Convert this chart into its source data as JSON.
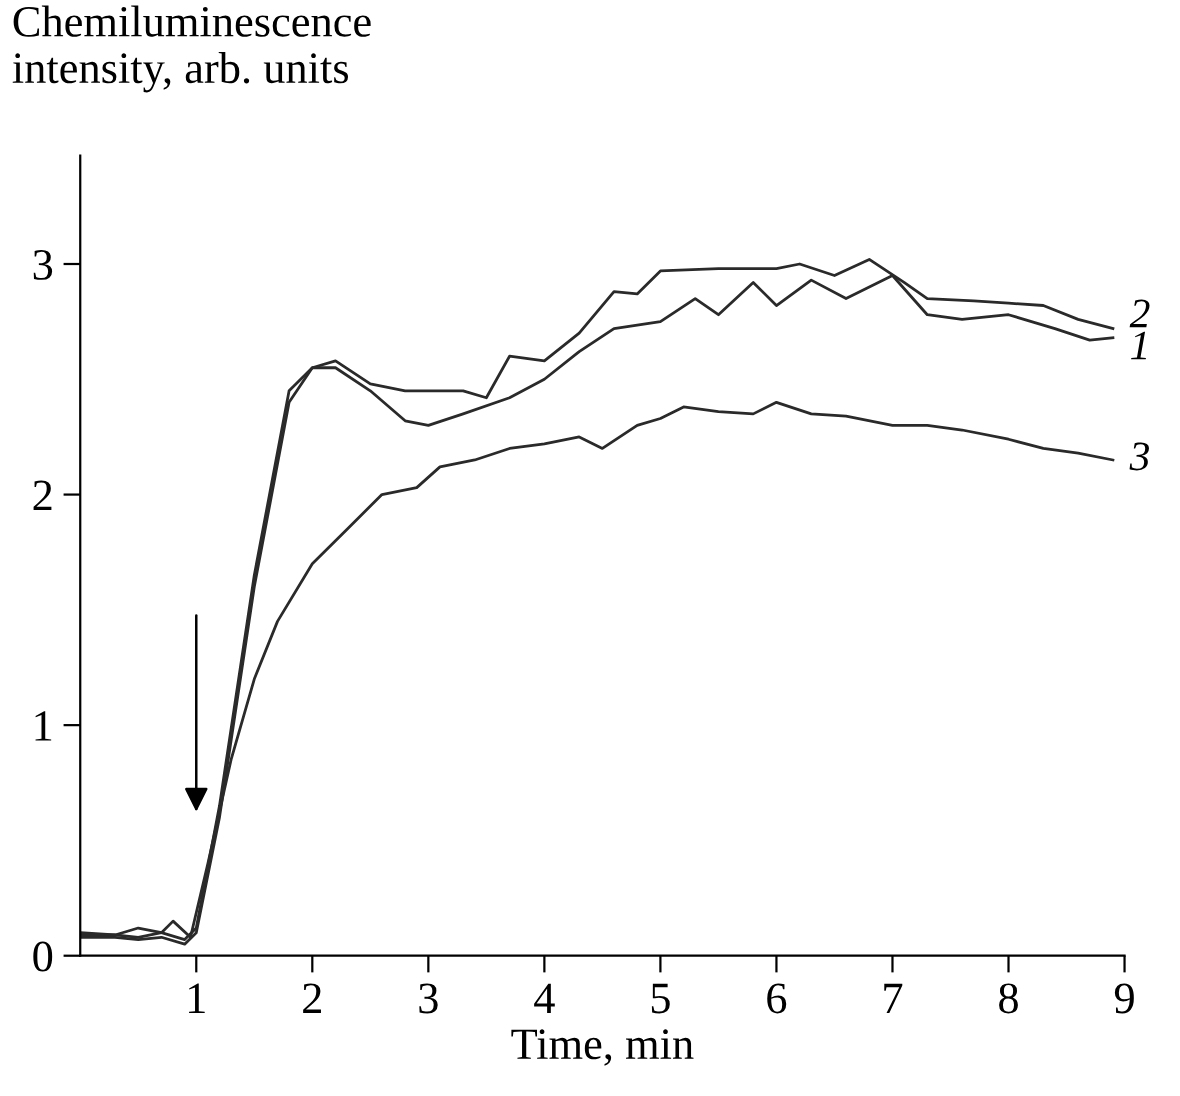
{
  "chart_data": {
    "type": "line",
    "ylabel": "Chemiluminescence\nintensity, arb. units",
    "xlabel": "Time, min",
    "xlim": [
      0,
      9
    ],
    "ylim": [
      0,
      3.47
    ],
    "xticks": [
      1,
      2,
      3,
      4,
      5,
      6,
      7,
      8,
      9
    ],
    "yticks": [
      0,
      1,
      2,
      3
    ],
    "grid": false,
    "legend": false,
    "marker": "none",
    "line_style": "solid",
    "series": [
      {
        "name": "1",
        "color": "#2a2a2a",
        "x": [
          0,
          0.3,
          0.5,
          0.7,
          0.9,
          1.0,
          1.2,
          1.5,
          1.8,
          2.0,
          2.2,
          2.5,
          2.8,
          3.0,
          3.3,
          3.7,
          4.0,
          4.3,
          4.6,
          5.0,
          5.3,
          5.5,
          5.8,
          6.0,
          6.3,
          6.6,
          7.0,
          7.3,
          7.6,
          8.0,
          8.4,
          8.7,
          8.9
        ],
        "values": [
          0.08,
          0.08,
          0.07,
          0.08,
          0.05,
          0.1,
          0.6,
          1.6,
          2.4,
          2.55,
          2.55,
          2.45,
          2.32,
          2.3,
          2.35,
          2.42,
          2.5,
          2.62,
          2.72,
          2.75,
          2.85,
          2.78,
          2.92,
          2.82,
          2.93,
          2.85,
          2.95,
          2.78,
          2.76,
          2.78,
          2.72,
          2.67,
          2.68
        ]
      },
      {
        "name": "2",
        "color": "#2a2a2a",
        "x": [
          0,
          0.3,
          0.5,
          0.7,
          0.9,
          1.0,
          1.2,
          1.5,
          1.8,
          2.0,
          2.2,
          2.5,
          2.8,
          3.0,
          3.3,
          3.5,
          3.7,
          4.0,
          4.3,
          4.6,
          4.8,
          5.0,
          5.5,
          6.0,
          6.2,
          6.5,
          6.8,
          7.1,
          7.3,
          7.7,
          8.0,
          8.3,
          8.6,
          8.9
        ],
        "values": [
          0.09,
          0.09,
          0.12,
          0.1,
          0.07,
          0.12,
          0.65,
          1.65,
          2.45,
          2.55,
          2.58,
          2.48,
          2.45,
          2.45,
          2.45,
          2.42,
          2.6,
          2.58,
          2.7,
          2.88,
          2.87,
          2.97,
          2.98,
          2.98,
          3.0,
          2.95,
          3.02,
          2.92,
          2.85,
          2.84,
          2.83,
          2.82,
          2.76,
          2.72
        ]
      },
      {
        "name": "3",
        "color": "#2a2a2a",
        "x": [
          0,
          0.3,
          0.5,
          0.7,
          0.8,
          0.95,
          1.1,
          1.3,
          1.5,
          1.7,
          2.0,
          2.3,
          2.6,
          2.9,
          3.1,
          3.4,
          3.7,
          4.0,
          4.3,
          4.5,
          4.8,
          5.0,
          5.2,
          5.5,
          5.8,
          6.0,
          6.3,
          6.6,
          7.0,
          7.3,
          7.6,
          8.0,
          8.3,
          8.6,
          8.9
        ],
        "values": [
          0.1,
          0.09,
          0.08,
          0.1,
          0.15,
          0.08,
          0.4,
          0.85,
          1.2,
          1.45,
          1.7,
          1.85,
          2.0,
          2.03,
          2.12,
          2.15,
          2.2,
          2.22,
          2.25,
          2.2,
          2.3,
          2.33,
          2.38,
          2.36,
          2.35,
          2.4,
          2.35,
          2.34,
          2.3,
          2.3,
          2.28,
          2.24,
          2.2,
          2.18,
          2.15
        ]
      }
    ]
  }
}
